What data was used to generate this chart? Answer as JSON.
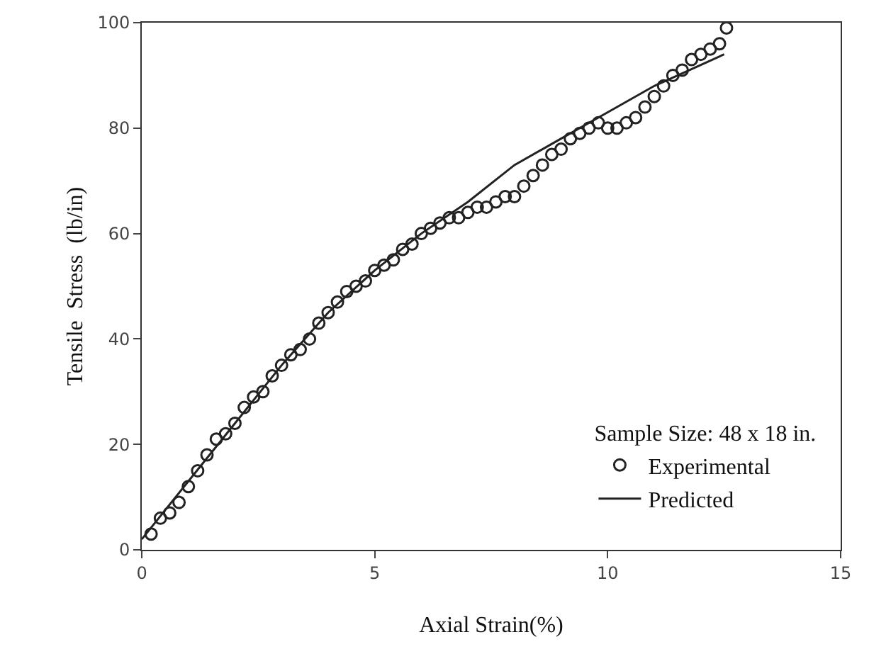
{
  "chart_data": {
    "type": "scatter",
    "xlabel": "Axial Strain(%)",
    "ylabel": "Tensile  Stress  (lb/in)",
    "legend_title": "Sample Size: 48 x 18 in.",
    "xlim": [
      0,
      15
    ],
    "xticks": [
      0,
      5,
      10,
      15
    ],
    "ylim": [
      0,
      100
    ],
    "yticks": [
      0,
      20,
      40,
      60,
      80,
      100
    ],
    "grid": false,
    "legend": "bottom right",
    "series": [
      {
        "name": "Experimental",
        "marker": "circle",
        "color": "#222222",
        "x": [
          0.2,
          0.4,
          0.6,
          0.8,
          1.0,
          1.2,
          1.4,
          1.6,
          1.8,
          2.0,
          2.2,
          2.4,
          2.6,
          2.8,
          3.0,
          3.2,
          3.4,
          3.6,
          3.8,
          4.0,
          4.2,
          4.4,
          4.6,
          4.8,
          5.0,
          5.2,
          5.4,
          5.6,
          5.8,
          6.0,
          6.2,
          6.4,
          6.6,
          6.8,
          7.0,
          7.2,
          7.4,
          7.6,
          7.8,
          8.0,
          8.2,
          8.4,
          8.6,
          8.8,
          9.0,
          9.2,
          9.4,
          9.6,
          9.8,
          10.0,
          10.2,
          10.4,
          10.6,
          10.8,
          11.0,
          11.2,
          11.4,
          11.6,
          11.8,
          12.0,
          12.2,
          12.4,
          12.55
        ],
        "values": [
          3,
          6,
          7,
          9,
          12,
          15,
          18,
          21,
          22,
          24,
          27,
          29,
          30,
          33,
          35,
          37,
          38,
          40,
          43,
          45,
          47,
          49,
          50,
          51,
          53,
          54,
          55,
          57,
          58,
          60,
          61,
          62,
          63,
          63,
          64,
          65,
          65,
          66,
          67,
          67,
          69,
          71,
          73,
          75,
          76,
          78,
          79,
          80,
          81,
          80,
          80,
          81,
          82,
          84,
          86,
          88,
          90,
          91,
          93,
          94,
          95,
          96,
          99
        ]
      },
      {
        "name": "Predicted",
        "type": "line",
        "marker": "none",
        "line_style": "solid",
        "color": "#222222",
        "x": [
          0,
          1,
          2,
          3,
          4,
          5,
          6,
          7,
          8,
          9,
          10,
          11,
          12,
          12.5
        ],
        "values": [
          2,
          13,
          24,
          35,
          45,
          53,
          60,
          66,
          73,
          78,
          83,
          88,
          92,
          94
        ]
      }
    ]
  }
}
